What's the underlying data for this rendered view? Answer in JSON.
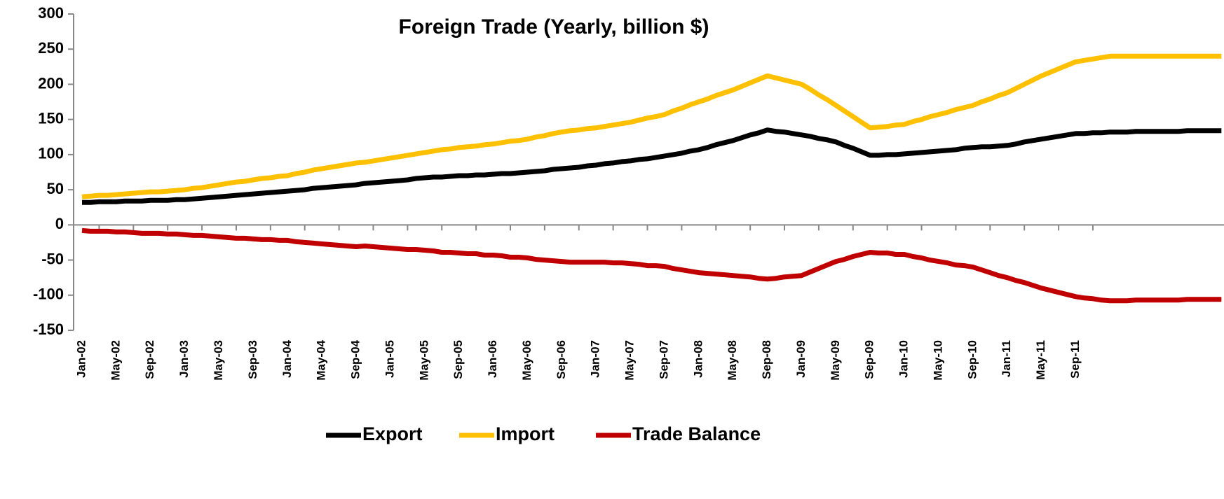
{
  "chart_data": {
    "type": "line",
    "title": "Foreign Trade (Yearly, billion $)",
    "categories": [
      "Jan-02",
      null,
      null,
      null,
      "May-02",
      null,
      null,
      null,
      "Sep-02",
      null,
      null,
      null,
      "Jan-03",
      null,
      null,
      null,
      "May-03",
      null,
      null,
      null,
      "Sep-03",
      null,
      null,
      null,
      "Jan-04",
      null,
      null,
      null,
      "May-04",
      null,
      null,
      null,
      "Sep-04",
      null,
      null,
      null,
      "Jan-05",
      null,
      null,
      null,
      "May-05",
      null,
      null,
      null,
      "Sep-05",
      null,
      null,
      null,
      "Jan-06",
      null,
      null,
      null,
      "May-06",
      null,
      null,
      null,
      "Sep-06",
      null,
      null,
      null,
      "Jan-07",
      null,
      null,
      null,
      "May-07",
      null,
      null,
      null,
      "Sep-07",
      null,
      null,
      null,
      "Jan-08",
      null,
      null,
      null,
      "May-08",
      null,
      null,
      null,
      "Sep-08",
      null,
      null,
      null,
      "Jan-09",
      null,
      null,
      null,
      "May-09",
      null,
      null,
      null,
      "Sep-09",
      null,
      null,
      null,
      "Jan-10",
      null,
      null,
      null,
      "May-10",
      null,
      null,
      null,
      "Sep-10",
      null,
      null,
      null,
      "Jan-11",
      null,
      null,
      null,
      "May-11",
      null,
      null,
      null,
      "Sep-11",
      null,
      null,
      null,
      null,
      null,
      null,
      null,
      null,
      null,
      null,
      null,
      null,
      null,
      null,
      null,
      null,
      null
    ],
    "series": [
      {
        "name": "Export",
        "color": "#000000",
        "values": [
          32,
          32,
          33,
          33,
          33,
          34,
          34,
          34,
          35,
          35,
          35,
          36,
          36,
          37,
          38,
          39,
          40,
          41,
          42,
          43,
          44,
          45,
          46,
          47,
          48,
          49,
          50,
          52,
          53,
          54,
          55,
          56,
          57,
          59,
          60,
          61,
          62,
          63,
          64,
          66,
          67,
          68,
          68,
          69,
          70,
          70,
          71,
          71,
          72,
          73,
          73,
          74,
          75,
          76,
          77,
          79,
          80,
          81,
          82,
          84,
          85,
          87,
          88,
          90,
          91,
          93,
          94,
          96,
          98,
          100,
          102,
          105,
          107,
          110,
          114,
          117,
          120,
          124,
          128,
          131,
          135,
          133,
          132,
          130,
          128,
          126,
          123,
          121,
          118,
          113,
          109,
          104,
          99,
          99,
          100,
          100,
          101,
          102,
          103,
          104,
          105,
          106,
          107,
          109,
          110,
          111,
          111,
          112,
          113,
          115,
          118,
          120,
          122,
          124,
          126,
          128,
          130,
          130,
          131,
          131,
          132,
          132,
          132,
          133,
          133,
          133,
          133,
          133,
          133,
          134,
          134,
          134,
          134,
          134
        ]
      },
      {
        "name": "Import",
        "color": "#ffc000",
        "values": [
          40,
          41,
          42,
          42,
          43,
          44,
          45,
          46,
          47,
          47,
          48,
          49,
          50,
          52,
          53,
          55,
          57,
          59,
          61,
          62,
          64,
          66,
          67,
          69,
          70,
          73,
          75,
          78,
          80,
          82,
          84,
          86,
          88,
          89,
          91,
          93,
          95,
          97,
          99,
          101,
          103,
          105,
          107,
          108,
          110,
          111,
          112,
          114,
          115,
          117,
          119,
          120,
          122,
          125,
          127,
          130,
          132,
          134,
          135,
          137,
          138,
          140,
          142,
          144,
          146,
          149,
          152,
          154,
          157,
          162,
          166,
          171,
          175,
          179,
          184,
          188,
          192,
          197,
          202,
          207,
          212,
          209,
          206,
          203,
          200,
          193,
          185,
          178,
          170,
          162,
          154,
          146,
          138,
          139,
          140,
          142,
          143,
          147,
          150,
          154,
          157,
          160,
          164,
          167,
          170,
          175,
          179,
          184,
          188,
          194,
          200,
          206,
          212,
          217,
          222,
          227,
          232,
          234,
          236,
          238,
          240,
          240,
          240,
          240,
          240,
          240,
          240,
          240,
          240,
          240,
          240,
          240,
          240,
          240
        ]
      },
      {
        "name": "Trade Balance",
        "color": "#c00000",
        "values": [
          -8,
          -9,
          -9,
          -9,
          -10,
          -10,
          -11,
          -12,
          -12,
          -12,
          -13,
          -13,
          -14,
          -15,
          -15,
          -16,
          -17,
          -18,
          -19,
          -19,
          -20,
          -21,
          -21,
          -22,
          -22,
          -24,
          -25,
          -26,
          -27,
          -28,
          -29,
          -30,
          -31,
          -30,
          -31,
          -32,
          -33,
          -34,
          -35,
          -35,
          -36,
          -37,
          -39,
          -39,
          -40,
          -41,
          -41,
          -43,
          -43,
          -44,
          -46,
          -46,
          -47,
          -49,
          -50,
          -51,
          -52,
          -53,
          -53,
          -53,
          -53,
          -53,
          -54,
          -54,
          -55,
          -56,
          -58,
          -58,
          -59,
          -62,
          -64,
          -66,
          -68,
          -69,
          -70,
          -71,
          -72,
          -73,
          -74,
          -76,
          -77,
          -76,
          -74,
          -73,
          -72,
          -67,
          -62,
          -57,
          -52,
          -49,
          -45,
          -42,
          -39,
          -40,
          -40,
          -42,
          -42,
          -45,
          -47,
          -50,
          -52,
          -54,
          -57,
          -58,
          -60,
          -64,
          -68,
          -72,
          -75,
          -79,
          -82,
          -86,
          -90,
          -93,
          -96,
          -99,
          -102,
          -104,
          -105,
          -107,
          -108,
          -108,
          -108,
          -107,
          -107,
          -107,
          -107,
          -107,
          -107,
          -106,
          -106,
          -106,
          -106,
          -106
        ]
      }
    ],
    "ylim": [
      -150,
      300
    ],
    "yticks": [
      -150,
      -100,
      -50,
      0,
      50,
      100,
      150,
      200,
      250,
      300
    ],
    "legend": "bottom"
  }
}
